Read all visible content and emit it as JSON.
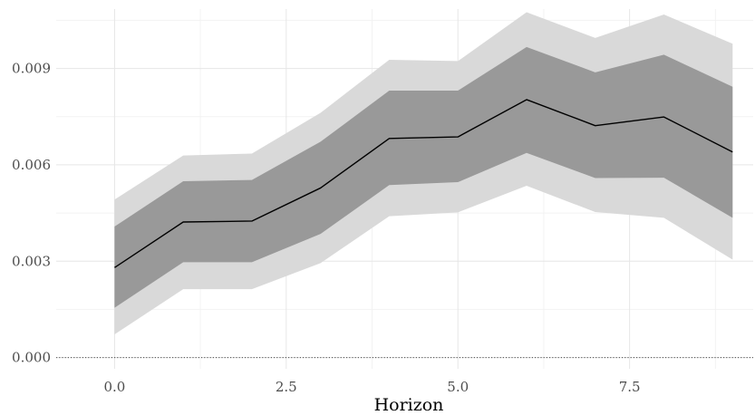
{
  "chart_data": {
    "type": "line",
    "title": "",
    "xlabel": "Horizon",
    "ylabel": "",
    "xlim": [
      -0.85,
      9.3
    ],
    "ylim": [
      -0.00035,
      0.01085
    ],
    "x_ticks": [
      {
        "value": 0,
        "label": "0.0"
      },
      {
        "value": 2.5,
        "label": "2.5"
      },
      {
        "value": 5,
        "label": "5.0"
      },
      {
        "value": 7.5,
        "label": "7.5"
      }
    ],
    "y_ticks": [
      {
        "value": 0,
        "label": "0.000"
      },
      {
        "value": 0.003,
        "label": "0.003"
      },
      {
        "value": 0.006,
        "label": "0.006"
      },
      {
        "value": 0.009,
        "label": "0.009"
      }
    ],
    "x_minor": [
      1.25,
      3.75,
      6.25,
      8.75
    ],
    "y_minor": [
      0.0015,
      0.0045,
      0.0075,
      0.0105
    ],
    "grid": true,
    "reference_line": {
      "y": 0,
      "style": "dotted"
    },
    "x": [
      0,
      1,
      2,
      3,
      4,
      5,
      6,
      7,
      8,
      9
    ],
    "series": [
      {
        "values": [
          0.0028,
          0.00422,
          0.00425,
          0.00528,
          0.00682,
          0.00687,
          0.00803,
          0.00722,
          0.00749,
          0.0064
        ]
      }
    ],
    "bands": [
      {
        "level": "outer",
        "lower": [
          0.00072,
          0.00213,
          0.00213,
          0.00294,
          0.0044,
          0.00452,
          0.00535,
          0.00453,
          0.00435,
          0.00305
        ],
        "upper": [
          0.00492,
          0.00629,
          0.00635,
          0.00762,
          0.00927,
          0.00923,
          0.01075,
          0.00995,
          0.01068,
          0.00977
        ]
      },
      {
        "level": "inner",
        "lower": [
          0.00155,
          0.00297,
          0.00297,
          0.00385,
          0.00537,
          0.00546,
          0.00637,
          0.00559,
          0.0056,
          0.00435
        ],
        "upper": [
          0.00408,
          0.00549,
          0.00553,
          0.00672,
          0.00831,
          0.00831,
          0.00967,
          0.00888,
          0.00943,
          0.00843
        ]
      }
    ],
    "colors": {
      "outer_band": "#d9d9d9",
      "inner_band": "#999999",
      "line": "#000000",
      "grid_major": "#e6e6e6",
      "grid_minor": "#f2f2f2",
      "zero_line": "#4d4d4d"
    }
  }
}
